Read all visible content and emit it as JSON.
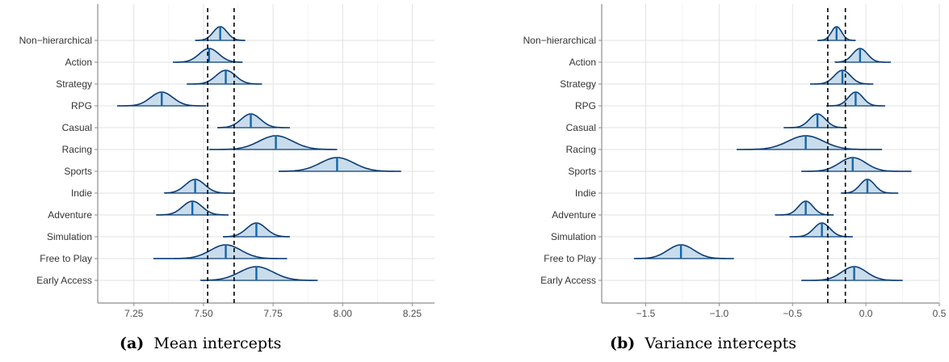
{
  "colors": {
    "fill": "#c9dcec",
    "outline": "#0b3d73",
    "median": "#1566a8",
    "grid": "#e2e2e2",
    "axis": "#8c8c8c",
    "refline": "#000000"
  },
  "captions": [
    {
      "letter": "(a)",
      "text": "Mean intercepts"
    },
    {
      "letter": "(b)",
      "text": "Variance intercepts"
    }
  ],
  "chart_data": [
    {
      "type": "ridgeline",
      "title": "",
      "xlabel": "",
      "ylabel": "",
      "grid": true,
      "xlim": [
        7.12,
        8.33
      ],
      "x_ticks": [
        7.25,
        7.5,
        7.75,
        8.0,
        8.25
      ],
      "x_tick_labels": [
        "7.25",
        "7.50",
        "7.75",
        "8.00",
        "8.25"
      ],
      "reference_lines": [
        7.515,
        7.61
      ],
      "categories": [
        "Non−hierarchical",
        "Action",
        "Strategy",
        "RPG",
        "Casual",
        "Racing",
        "Sports",
        "Indie",
        "Adventure",
        "Simulation",
        "Free to Play",
        "Early Access"
      ],
      "distributions": [
        {
          "category": "Non−hierarchical",
          "median": 7.56,
          "lower": 7.47,
          "upper": 7.65,
          "sd": 0.025
        },
        {
          "category": "Action",
          "median": 7.52,
          "lower": 7.39,
          "upper": 7.64,
          "sd": 0.035
        },
        {
          "category": "Strategy",
          "median": 7.58,
          "lower": 7.44,
          "upper": 7.71,
          "sd": 0.035
        },
        {
          "category": "RPG",
          "median": 7.35,
          "lower": 7.19,
          "upper": 7.51,
          "sd": 0.04
        },
        {
          "category": "Casual",
          "median": 7.67,
          "lower": 7.55,
          "upper": 7.81,
          "sd": 0.035
        },
        {
          "category": "Racing",
          "median": 7.76,
          "lower": 7.52,
          "upper": 7.98,
          "sd": 0.06
        },
        {
          "category": "Sports",
          "median": 7.98,
          "lower": 7.77,
          "upper": 8.21,
          "sd": 0.06
        },
        {
          "category": "Indie",
          "median": 7.47,
          "lower": 7.36,
          "upper": 7.61,
          "sd": 0.035
        },
        {
          "category": "Adventure",
          "median": 7.46,
          "lower": 7.33,
          "upper": 7.59,
          "sd": 0.035
        },
        {
          "category": "Simulation",
          "median": 7.69,
          "lower": 7.57,
          "upper": 7.81,
          "sd": 0.035
        },
        {
          "category": "Free to Play",
          "median": 7.58,
          "lower": 7.32,
          "upper": 7.8,
          "sd": 0.055
        },
        {
          "category": "Early Access",
          "median": 7.69,
          "lower": 7.49,
          "upper": 7.91,
          "sd": 0.06
        }
      ]
    },
    {
      "type": "ridgeline",
      "title": "",
      "xlabel": "",
      "ylabel": "",
      "grid": true,
      "xlim": [
        -1.8,
        0.5
      ],
      "x_ticks": [
        -1.5,
        -1.0,
        -0.5,
        0.0,
        0.5
      ],
      "x_tick_labels": [
        "−1.5",
        "−1.0",
        "−0.5",
        "0.0",
        "0.5"
      ],
      "reference_lines": [
        -0.26,
        -0.14
      ],
      "categories": [
        "Non−hierarchical",
        "Action",
        "Strategy",
        "RPG",
        "Casual",
        "Racing",
        "Sports",
        "Indie",
        "Adventure",
        "Simulation",
        "Free to Play",
        "Early Access"
      ],
      "distributions": [
        {
          "category": "Non−hierarchical",
          "median": -0.2,
          "lower": -0.33,
          "upper": -0.07,
          "sd": 0.035
        },
        {
          "category": "Action",
          "median": -0.04,
          "lower": -0.21,
          "upper": 0.17,
          "sd": 0.05
        },
        {
          "category": "Strategy",
          "median": -0.16,
          "lower": -0.38,
          "upper": 0.05,
          "sd": 0.055
        },
        {
          "category": "RPG",
          "median": -0.07,
          "lower": -0.27,
          "upper": 0.13,
          "sd": 0.05
        },
        {
          "category": "Casual",
          "median": -0.33,
          "lower": -0.56,
          "upper": -0.13,
          "sd": 0.055
        },
        {
          "category": "Racing",
          "median": -0.41,
          "lower": -0.88,
          "upper": 0.11,
          "sd": 0.12
        },
        {
          "category": "Sports",
          "median": -0.09,
          "lower": -0.44,
          "upper": 0.31,
          "sd": 0.09
        },
        {
          "category": "Indie",
          "median": 0.01,
          "lower": -0.17,
          "upper": 0.22,
          "sd": 0.05
        },
        {
          "category": "Adventure",
          "median": -0.41,
          "lower": -0.62,
          "upper": -0.22,
          "sd": 0.05
        },
        {
          "category": "Simulation",
          "median": -0.3,
          "lower": -0.52,
          "upper": -0.09,
          "sd": 0.055
        },
        {
          "category": "Free to Play",
          "median": -1.26,
          "lower": -1.58,
          "upper": -0.9,
          "sd": 0.09
        },
        {
          "category": "Early Access",
          "median": -0.08,
          "lower": -0.44,
          "upper": 0.25,
          "sd": 0.085
        }
      ]
    }
  ]
}
